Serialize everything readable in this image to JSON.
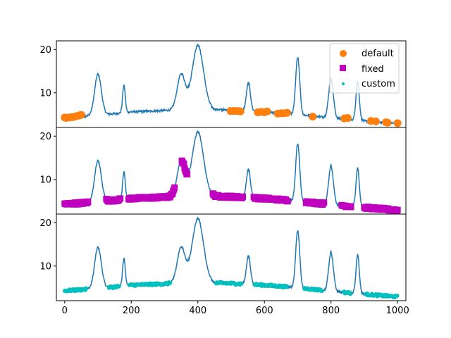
{
  "chart_data": {
    "type": "line",
    "x_range": [
      0,
      1000
    ],
    "xlim": [
      -25,
      1025
    ],
    "ylim": [
      2,
      22
    ],
    "x_ticks": [
      0,
      200,
      400,
      600,
      800,
      1000
    ],
    "y_ticks": [
      10,
      20
    ],
    "legend": {
      "placement": "top-right",
      "panel": 0
    },
    "signal": {
      "color": "#1f77b4",
      "baseline_points": [
        [
          0,
          4.3
        ],
        [
          100,
          4.8
        ],
        [
          200,
          5.6
        ],
        [
          300,
          5.9
        ],
        [
          400,
          6.2
        ],
        [
          500,
          6.0
        ],
        [
          600,
          5.6
        ],
        [
          700,
          5.0
        ],
        [
          800,
          4.2
        ],
        [
          900,
          3.5
        ],
        [
          1000,
          2.9
        ]
      ],
      "peaks": [
        {
          "center": 100,
          "height": 9.5,
          "width": 10
        },
        {
          "center": 178,
          "height": 6.3,
          "width": 4
        },
        {
          "center": 350,
          "height": 8.2,
          "width": 12
        },
        {
          "center": 400,
          "height": 14.8,
          "width": 17
        },
        {
          "center": 552,
          "height": 6.5,
          "width": 6
        },
        {
          "center": 700,
          "height": 13.3,
          "width": 6
        },
        {
          "center": 800,
          "height": 9.0,
          "width": 7
        },
        {
          "center": 880,
          "height": 9.0,
          "width": 5
        }
      ],
      "noise_amplitude": 0.25
    },
    "series": [
      {
        "name": "default",
        "panel": 0,
        "marker": "circle",
        "color": "#ff7f0e",
        "points": [
          [
            0,
            4.3
          ],
          [
            5,
            4.2
          ],
          [
            10,
            4.3
          ],
          [
            15,
            4.3
          ],
          [
            20,
            4.4
          ],
          [
            25,
            4.4
          ],
          [
            30,
            4.5
          ],
          [
            35,
            4.6
          ],
          [
            40,
            4.7
          ],
          [
            45,
            4.8
          ],
          [
            50,
            4.9
          ],
          [
            498,
            5.8
          ],
          [
            505,
            5.8
          ],
          [
            512,
            5.8
          ],
          [
            520,
            5.8
          ],
          [
            528,
            5.7
          ],
          [
            580,
            5.5
          ],
          [
            590,
            5.6
          ],
          [
            600,
            5.5
          ],
          [
            608,
            5.7
          ],
          [
            640,
            5.2
          ],
          [
            650,
            5.3
          ],
          [
            660,
            5.3
          ],
          [
            668,
            5.4
          ],
          [
            745,
            4.5
          ],
          [
            840,
            4.1
          ],
          [
            850,
            4.2
          ],
          [
            920,
            3.5
          ],
          [
            935,
            3.4
          ],
          [
            965,
            3.2
          ],
          [
            970,
            3.1
          ],
          [
            1000,
            3.0
          ]
        ]
      },
      {
        "name": "fixed",
        "panel": 1,
        "marker": "square",
        "color": "#bf00bf",
        "segments": [
          [
            0,
            70
          ],
          [
            125,
            168
          ],
          [
            192,
            330
          ],
          [
            352,
            368
          ],
          [
            445,
            535
          ],
          [
            568,
            670
          ],
          [
            725,
            780
          ],
          [
            832,
            860
          ],
          [
            900,
            1000
          ]
        ]
      },
      {
        "name": "custom",
        "panel": 2,
        "marker": "point",
        "color": "#00bfbf",
        "segments": [
          [
            0,
            65
          ],
          [
            133,
            163
          ],
          [
            195,
            318
          ],
          [
            455,
            532
          ],
          [
            570,
            668
          ],
          [
            720,
            773
          ],
          [
            838,
            858
          ],
          [
            905,
            1000
          ]
        ]
      }
    ]
  }
}
